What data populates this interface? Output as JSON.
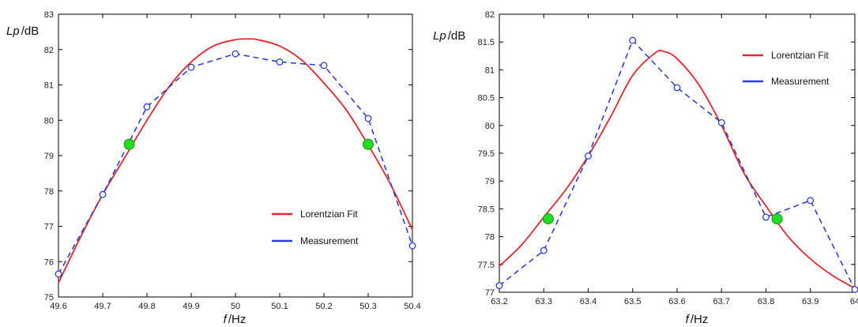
{
  "chart_data": [
    {
      "type": "line",
      "ylabel_symbol": "Lp",
      "ylabel_unit": "/dB",
      "xlabel_symbol": "f",
      "xlabel_unit": "/Hz",
      "xlim": [
        49.6,
        50.4
      ],
      "ylim": [
        75,
        83
      ],
      "xticks": [
        "49.6",
        "49.7",
        "49.8",
        "49.9",
        "50",
        "50.1",
        "50.2",
        "50.3",
        "50.4"
      ],
      "yticks": [
        "75",
        "76",
        "77",
        "78",
        "79",
        "80",
        "81",
        "82",
        "83"
      ],
      "grid": false,
      "legend_position": "lower-right",
      "series": [
        {
          "name": "Lorentzian Fit",
          "color": "#e8262b",
          "style": "solid",
          "x": [
            49.6,
            49.65,
            49.7,
            49.75,
            49.8,
            49.85,
            49.9,
            49.95,
            50.0,
            50.03,
            50.05,
            50.1,
            50.15,
            50.2,
            50.25,
            50.3,
            50.35,
            50.4
          ],
          "y": [
            75.4,
            76.7,
            77.9,
            78.95,
            80.0,
            80.95,
            81.65,
            82.1,
            82.28,
            82.3,
            82.28,
            82.1,
            81.7,
            81.05,
            80.3,
            79.3,
            78.2,
            76.9
          ]
        },
        {
          "name": "Measurement",
          "color": "#2a3fdb",
          "style": "dashed",
          "markers": "open-circle",
          "x": [
            49.6,
            49.7,
            49.8,
            49.9,
            50.0,
            50.1,
            50.2,
            50.3,
            50.4
          ],
          "y": [
            75.65,
            77.9,
            80.38,
            81.5,
            81.88,
            81.65,
            81.55,
            80.05,
            76.45
          ]
        }
      ],
      "highlight_points": {
        "color": "#22dd22",
        "x": [
          49.76,
          50.3
        ],
        "y": [
          79.32,
          79.32
        ]
      }
    },
    {
      "type": "line",
      "ylabel_symbol": "Lp",
      "ylabel_unit": "/dB",
      "xlabel_symbol": "f",
      "xlabel_unit": "/Hz",
      "xlim": [
        63.2,
        64.0
      ],
      "ylim": [
        77,
        82
      ],
      "xticks": [
        "63.2",
        "63.3",
        "63.4",
        "63.5",
        "63.6",
        "63.7",
        "63.8",
        "63.9",
        "64"
      ],
      "yticks": [
        "77",
        "77.5",
        "78",
        "78.5",
        "79",
        "79.5",
        "80",
        "80.5",
        "81",
        "81.5",
        "82"
      ],
      "grid": false,
      "legend_position": "upper-right",
      "series": [
        {
          "name": "Lorentzian Fit",
          "color": "#e8262b",
          "style": "solid",
          "x": [
            63.2,
            63.25,
            63.3,
            63.35,
            63.4,
            63.45,
            63.5,
            63.55,
            63.57,
            63.6,
            63.65,
            63.7,
            63.75,
            63.8,
            63.85,
            63.9,
            63.95,
            64.0
          ],
          "y": [
            77.47,
            77.85,
            78.35,
            78.85,
            79.45,
            80.15,
            80.9,
            81.3,
            81.33,
            81.2,
            80.72,
            80.0,
            79.15,
            78.55,
            78.0,
            77.6,
            77.3,
            77.07
          ]
        },
        {
          "name": "Measurement",
          "color": "#2a3fdb",
          "style": "dashed",
          "markers": "open-circle",
          "x": [
            63.2,
            63.3,
            63.4,
            63.5,
            63.6,
            63.7,
            63.8,
            63.9,
            64.0
          ],
          "y": [
            77.12,
            77.75,
            79.45,
            81.53,
            80.68,
            80.05,
            78.35,
            78.65,
            77.05
          ]
        }
      ],
      "highlight_points": {
        "color": "#22dd22",
        "x": [
          63.31,
          63.825
        ],
        "y": [
          78.32,
          78.32
        ]
      }
    }
  ]
}
